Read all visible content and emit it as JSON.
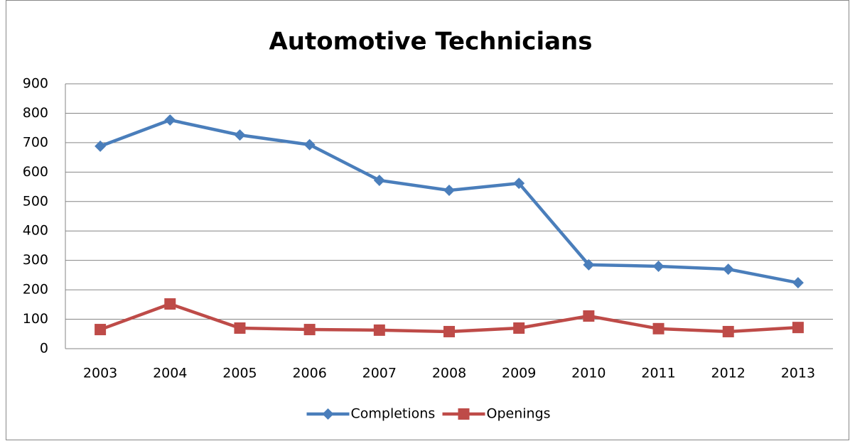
{
  "chart_data": {
    "type": "line",
    "title": "Automotive Technicians",
    "categories": [
      "2003",
      "2004",
      "2005",
      "2006",
      "2007",
      "2008",
      "2009",
      "2010",
      "2011",
      "2012",
      "2013"
    ],
    "series": [
      {
        "name": "Completions",
        "color": "#4a7ebb",
        "marker": "diamond",
        "values": [
          688,
          777,
          726,
          693,
          572,
          538,
          562,
          285,
          280,
          270,
          224
        ]
      },
      {
        "name": "Openings",
        "color": "#be4b48",
        "marker": "square",
        "values": [
          65,
          152,
          70,
          65,
          63,
          58,
          70,
          111,
          68,
          58,
          72
        ]
      }
    ],
    "ylim": [
      0,
      900
    ],
    "yticks": [
      0,
      100,
      200,
      300,
      400,
      500,
      600,
      700,
      800,
      900
    ],
    "grid": true,
    "legend": "bottom"
  }
}
